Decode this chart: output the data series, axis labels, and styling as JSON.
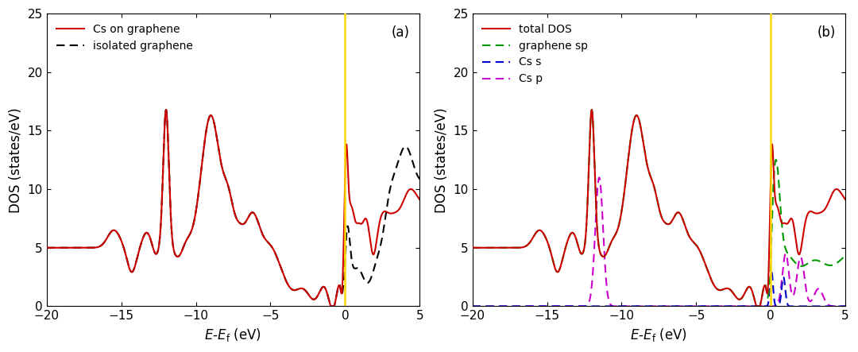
{
  "xlim": [
    -20,
    5
  ],
  "ylim": [
    0,
    25
  ],
  "xticks": [
    -20,
    -15,
    -10,
    -5,
    0,
    5
  ],
  "yticks": [
    0,
    5,
    10,
    15,
    20,
    25
  ],
  "ylabel": "DOS (states/eV)",
  "fermi_color": "#FFD700",
  "panel_a_label": "(a)",
  "panel_b_label": "(b)",
  "legend_a": [
    "Cs on graphene",
    "isolated graphene"
  ],
  "legend_b": [
    "total DOS",
    "graphene sp",
    "Cs s",
    "Cs p"
  ],
  "color_red": "#cc0000",
  "color_black": "#000000",
  "color_green": "#009900",
  "color_blue": "#0000cc",
  "color_magenta": "#cc00cc"
}
